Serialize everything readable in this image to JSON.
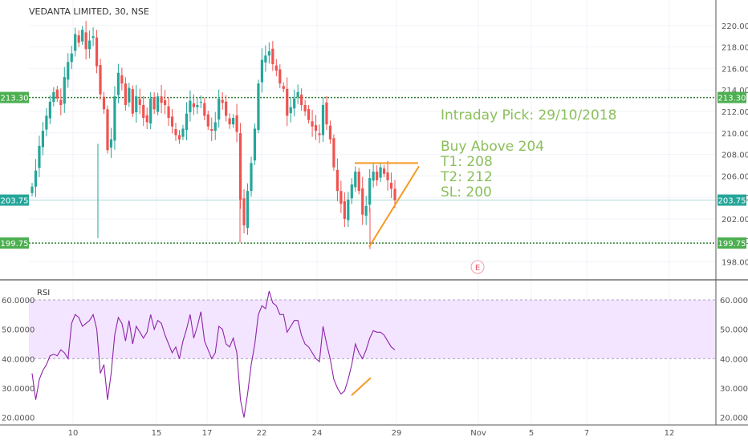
{
  "header": {
    "title": "VEDANTA LIMITED, 30, NSE"
  },
  "annotation": {
    "title": "Intraday Pick: 29/10/2018",
    "line1": "Buy Above 204",
    "line2": "T1: 208",
    "line3": "T2: 212",
    "line4": "SL: 200"
  },
  "colors": {
    "up": "#26a69a",
    "down": "#ef5350",
    "level": "#4caf50",
    "rsi_line": "#8e24aa",
    "rsi_band": "#f3e5ff",
    "drawing": "#f59a23",
    "price_badge": "#26a69a",
    "annotation": "#8bbf5a"
  },
  "chart_data": [
    {
      "type": "candlestick",
      "ylim": [
        197,
        222
      ],
      "ytick_labels": [
        "198.00",
        "200.00",
        "202.00",
        "204.00",
        "206.00",
        "208.00",
        "210.00",
        "212.00",
        "214.00",
        "216.00",
        "218.00",
        "220.00"
      ],
      "xtick_labels": [
        "10",
        "15",
        "17",
        "22",
        "24",
        "29",
        "Nov",
        "5",
        "7",
        "12"
      ],
      "horizontal_levels": [
        213.3,
        199.75
      ],
      "level_labels": [
        "213.30",
        "199.75"
      ],
      "last_price": 203.75,
      "last_price_label": "203.75",
      "closes": [
        205.0,
        206.5,
        208.8,
        210.2,
        211.6,
        212.9,
        213.8,
        213.2,
        212.6,
        215.2,
        216.6,
        217.4,
        219.2,
        218.4,
        219.6,
        217.8,
        218.6,
        219.0,
        216.2,
        213.6,
        212.2,
        208.4,
        209.4,
        213.4,
        215.6,
        214.6,
        212.6,
        214.2,
        211.8,
        213.4,
        212.6,
        211.4,
        211.0,
        213.2,
        212.2,
        213.4,
        212.8,
        212.6,
        211.4,
        210.6,
        209.8,
        209.4,
        210.4,
        211.8,
        213.0,
        212.4,
        212.6,
        212.9,
        211.6,
        210.6,
        210.2,
        211.0,
        213.2,
        212.8,
        211.6,
        210.8,
        211.4,
        210.1,
        203.8,
        201.4,
        204.6,
        207.2,
        210.4,
        214.6,
        216.8,
        217.2,
        217.6,
        216.4,
        215.8,
        214.6,
        214.1,
        211.6,
        212.4,
        213.2,
        213.8,
        212.6,
        212.0,
        211.2,
        210.6,
        210.2,
        209.8,
        212.6,
        210.8,
        209.4,
        206.8,
        204.6,
        203.4,
        202.0,
        203.8,
        205.2,
        206.4,
        204.6,
        202.4,
        203.2,
        205.8,
        206.4,
        205.6,
        206.8,
        206.2,
        205.6,
        204.8,
        203.75
      ],
      "event_marker": "E",
      "rsi": {
        "ylim": [
          18,
          66
        ],
        "ytick_labels": [
          "20.0000",
          "30.0000",
          "40.0000",
          "50.0000",
          "60.0000"
        ],
        "band": [
          40,
          60
        ],
        "label": "RSI",
        "values": [
          35.0,
          26.0,
          33.0,
          36.0,
          38.0,
          41.0,
          41.5,
          41.0,
          43.0,
          42.0,
          40.0,
          52.0,
          55.0,
          54.0,
          51.0,
          52.0,
          53.0,
          55.0,
          50.0,
          35.0,
          38.0,
          26.0,
          35.0,
          48.0,
          54.0,
          52.0,
          46.0,
          53.0,
          45.0,
          51.0,
          49.0,
          47.0,
          49.0,
          55.0,
          50.0,
          53.0,
          52.0,
          48.0,
          45.0,
          42.0,
          44.0,
          40.0,
          46.0,
          50.0,
          55.0,
          47.0,
          51.0,
          56.0,
          46.0,
          43.0,
          40.0,
          42.0,
          51.0,
          50.0,
          45.0,
          44.0,
          47.0,
          42.0,
          26.0,
          20.0,
          28.0,
          38.0,
          45.0,
          55.0,
          58.0,
          57.0,
          63.0,
          59.0,
          58.0,
          55.0,
          55.0,
          49.0,
          51.0,
          53.0,
          53.0,
          48.0,
          45.0,
          44.0,
          42.0,
          40.0,
          39.0,
          51.0,
          45.0,
          40.0,
          33.0,
          30.0,
          28.0,
          29.0,
          33.0,
          38.0,
          45.0,
          42.0,
          40.0,
          43.0,
          47.0,
          49.5,
          49.0,
          49.0,
          48.0,
          46.0,
          44.0,
          43.0
        ]
      }
    }
  ]
}
